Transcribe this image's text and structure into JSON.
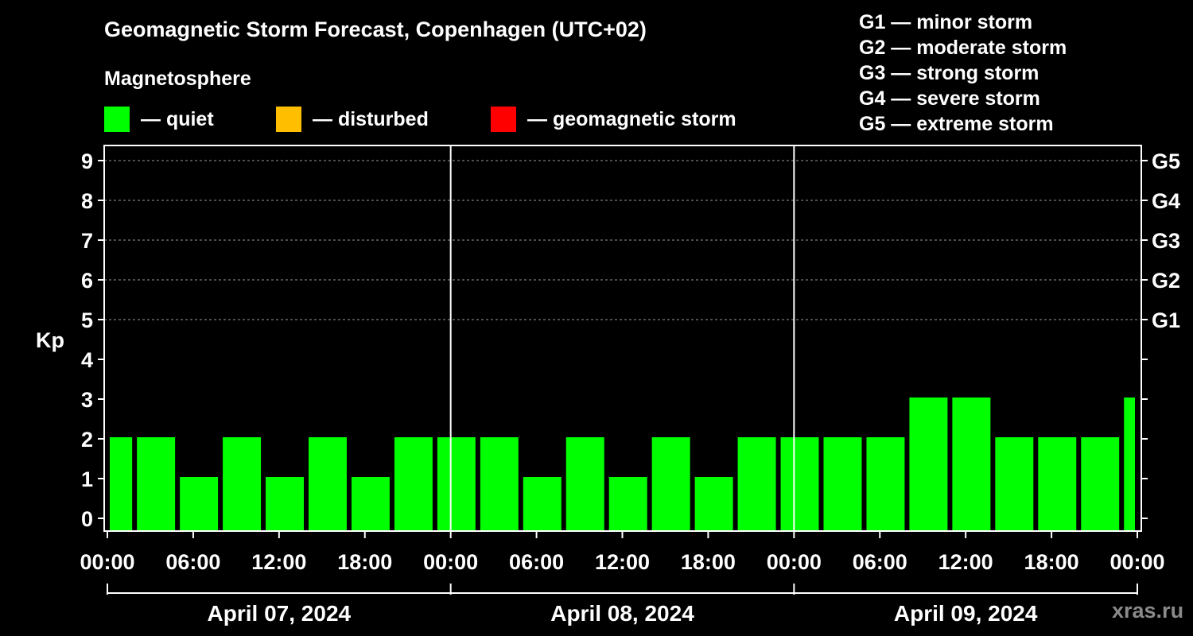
{
  "title": "Geomagnetic Storm Forecast, Copenhagen (UTC+02)",
  "subtitle": "Magnetosphere",
  "legend": [
    {
      "label": "— quiet",
      "color": "#00ff00"
    },
    {
      "label": "— disturbed",
      "color": "#ffbf00"
    },
    {
      "label": "— geomagnetic storm",
      "color": "#ff0000"
    }
  ],
  "g_scale": [
    "G1 — minor storm",
    "G2 — moderate storm",
    "G3 — strong storm",
    "G4 — severe storm",
    "G5 — extreme storm"
  ],
  "watermark": "xras.ru",
  "chart_data": {
    "type": "bar",
    "title": "Geomagnetic Storm Forecast, Copenhagen (UTC+02)",
    "ylabel": "Kp",
    "ylim": [
      0,
      9
    ],
    "y_ticks": [
      0,
      1,
      2,
      3,
      4,
      5,
      6,
      7,
      8,
      9
    ],
    "right_ticks": [
      {
        "value": 5,
        "label": "G1"
      },
      {
        "value": 6,
        "label": "G2"
      },
      {
        "value": 7,
        "label": "G3"
      },
      {
        "value": 8,
        "label": "G4"
      },
      {
        "value": 9,
        "label": "G5"
      }
    ],
    "x_range_hours": [
      0,
      72
    ],
    "x_tick_labels": [
      "00:00",
      "06:00",
      "12:00",
      "18:00",
      "00:00",
      "06:00",
      "12:00",
      "18:00",
      "00:00",
      "06:00",
      "12:00",
      "18:00",
      "00:00"
    ],
    "days": [
      "April 07, 2024",
      "April 08, 2024",
      "April 09, 2024"
    ],
    "grid": true,
    "bars": [
      {
        "start": 0,
        "end": 1.9,
        "kp": 2
      },
      {
        "start": 1.9,
        "end": 4.9,
        "kp": 2
      },
      {
        "start": 4.9,
        "end": 7.9,
        "kp": 1
      },
      {
        "start": 7.9,
        "end": 10.9,
        "kp": 2
      },
      {
        "start": 10.9,
        "end": 13.9,
        "kp": 1
      },
      {
        "start": 13.9,
        "end": 16.9,
        "kp": 2
      },
      {
        "start": 16.9,
        "end": 19.9,
        "kp": 1
      },
      {
        "start": 19.9,
        "end": 22.9,
        "kp": 2
      },
      {
        "start": 22.9,
        "end": 25.9,
        "kp": 2
      },
      {
        "start": 25.9,
        "end": 28.9,
        "kp": 2
      },
      {
        "start": 28.9,
        "end": 31.9,
        "kp": 1
      },
      {
        "start": 31.9,
        "end": 34.9,
        "kp": 2
      },
      {
        "start": 34.9,
        "end": 37.9,
        "kp": 1
      },
      {
        "start": 37.9,
        "end": 40.9,
        "kp": 2
      },
      {
        "start": 40.9,
        "end": 43.9,
        "kp": 1
      },
      {
        "start": 43.9,
        "end": 46.9,
        "kp": 2
      },
      {
        "start": 46.9,
        "end": 49.9,
        "kp": 2
      },
      {
        "start": 49.9,
        "end": 52.9,
        "kp": 2
      },
      {
        "start": 52.9,
        "end": 55.9,
        "kp": 2
      },
      {
        "start": 55.9,
        "end": 58.9,
        "kp": 3
      },
      {
        "start": 58.9,
        "end": 61.9,
        "kp": 3
      },
      {
        "start": 61.9,
        "end": 64.9,
        "kp": 2
      },
      {
        "start": 64.9,
        "end": 67.9,
        "kp": 2
      },
      {
        "start": 67.9,
        "end": 70.9,
        "kp": 2
      },
      {
        "start": 70.9,
        "end": 72,
        "kp": 3
      }
    ],
    "colors": {
      "quiet": "#00ff00",
      "disturbed": "#ffbf00",
      "storm": "#ff0000"
    }
  }
}
